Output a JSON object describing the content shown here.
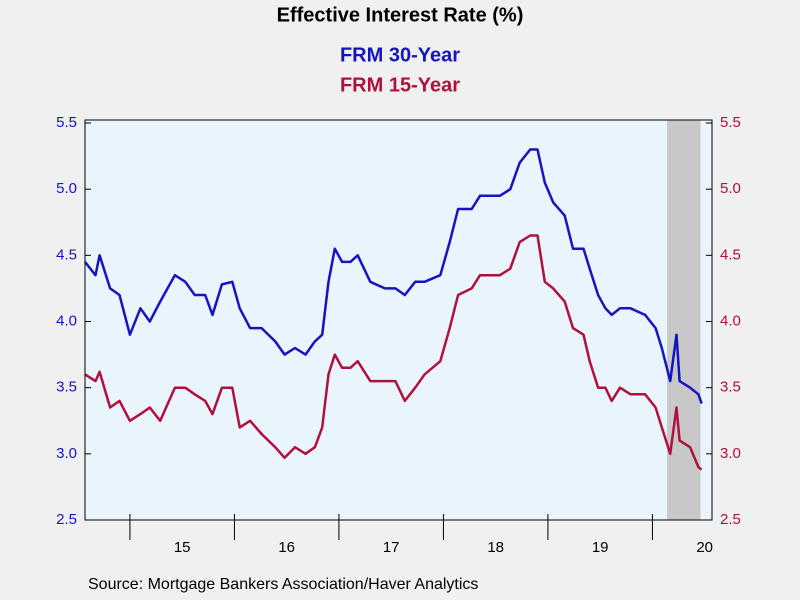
{
  "chart_data": {
    "type": "line",
    "title": "Effective Interest Rate (%)",
    "source": "Source:  Mortgage Bankers Association/Haver Analytics",
    "x": [
      2014.57,
      2014.67,
      2014.71,
      2014.81,
      2014.9,
      2015.0,
      2015.1,
      2015.19,
      2015.29,
      2015.43,
      2015.53,
      2015.62,
      2015.72,
      2015.79,
      2015.88,
      2015.98,
      2016.05,
      2016.15,
      2016.26,
      2016.39,
      2016.48,
      2016.58,
      2016.68,
      2016.77,
      2016.84,
      2016.9,
      2016.96,
      2017.03,
      2017.11,
      2017.18,
      2017.3,
      2017.44,
      2017.54,
      2017.63,
      2017.73,
      2017.82,
      2017.97,
      2018.06,
      2018.14,
      2018.27,
      2018.35,
      2018.45,
      2018.54,
      2018.64,
      2018.73,
      2018.83,
      2018.9,
      2018.97,
      2019.05,
      2019.16,
      2019.24,
      2019.34,
      2019.4,
      2019.48,
      2019.55,
      2019.61,
      2019.69,
      2019.79,
      2019.93,
      2020.03,
      2020.09,
      2020.17,
      2020.23,
      2020.26,
      2020.36,
      2020.44,
      2020.47
    ],
    "series": [
      {
        "name": "FRM 30-Year",
        "color": "#1414c0",
        "values": [
          4.45,
          4.35,
          4.5,
          4.25,
          4.2,
          3.9,
          4.1,
          4.0,
          4.15,
          4.35,
          4.3,
          4.2,
          4.2,
          4.05,
          4.28,
          4.3,
          4.1,
          3.95,
          3.95,
          3.85,
          3.75,
          3.8,
          3.75,
          3.85,
          3.9,
          4.3,
          4.55,
          4.45,
          4.45,
          4.5,
          4.3,
          4.25,
          4.25,
          4.2,
          4.3,
          4.3,
          4.35,
          4.6,
          4.85,
          4.85,
          4.95,
          4.95,
          4.95,
          5.0,
          5.2,
          5.3,
          5.3,
          5.05,
          4.9,
          4.8,
          4.55,
          4.55,
          4.4,
          4.2,
          4.1,
          4.05,
          4.1,
          4.1,
          4.05,
          3.95,
          3.8,
          3.55,
          3.9,
          3.55,
          3.5,
          3.45,
          3.38
        ]
      },
      {
        "name": "FRM 15-Year",
        "color": "#b0103c",
        "axis": "y2",
        "values": [
          3.6,
          3.55,
          3.62,
          3.35,
          3.4,
          3.25,
          3.3,
          3.35,
          3.25,
          3.5,
          3.5,
          3.45,
          3.4,
          3.3,
          3.5,
          3.5,
          3.2,
          3.25,
          3.15,
          3.05,
          2.97,
          3.05,
          3.0,
          3.05,
          3.2,
          3.6,
          3.75,
          3.65,
          3.65,
          3.7,
          3.55,
          3.55,
          3.55,
          3.4,
          3.5,
          3.6,
          3.7,
          3.95,
          4.2,
          4.25,
          4.35,
          4.35,
          4.35,
          4.4,
          4.6,
          4.65,
          4.65,
          4.3,
          4.25,
          4.15,
          3.95,
          3.9,
          3.7,
          3.5,
          3.5,
          3.4,
          3.5,
          3.45,
          3.45,
          3.35,
          3.2,
          3.0,
          3.35,
          3.1,
          3.05,
          2.9,
          2.88
        ]
      }
    ],
    "xlim": [
      2014.57,
      2020.57
    ],
    "xticks": [
      {
        "value": 2015.5,
        "label": "15"
      },
      {
        "value": 2016.5,
        "label": "16"
      },
      {
        "value": 2017.5,
        "label": "17"
      },
      {
        "value": 2018.5,
        "label": "18"
      },
      {
        "value": 2019.5,
        "label": "19"
      },
      {
        "value": 2020.5,
        "label": "20"
      }
    ],
    "year_bounds": [
      2015,
      2016,
      2017,
      2018,
      2019,
      2020
    ],
    "shaded_xlim": [
      2020.14,
      2020.46
    ],
    "ylim": [
      2.5,
      5.5
    ],
    "yticks": [
      2.5,
      {
        "value": 3,
        "label": "3.0"
      },
      3.5,
      {
        "value": 4,
        "label": "4.0"
      },
      4.5,
      {
        "value": 5,
        "label": "5.0"
      },
      5.5
    ],
    "y2lim": [
      2.5,
      5.5
    ],
    "y2ticks": [
      2.5,
      {
        "value": 3,
        "label": "3.0"
      },
      3.5,
      {
        "value": 4,
        "label": "4.0"
      },
      4.5,
      {
        "value": 5,
        "label": "5.0"
      },
      5.5
    ]
  }
}
